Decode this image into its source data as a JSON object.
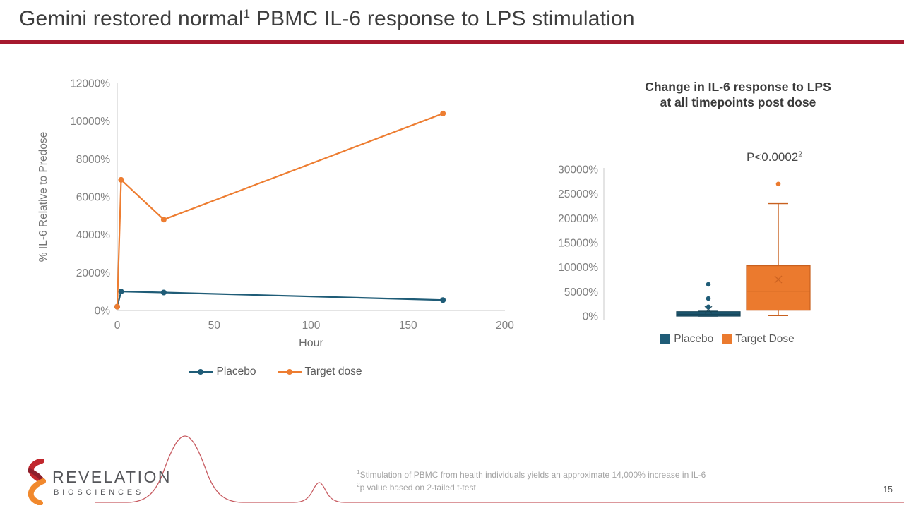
{
  "slide": {
    "title_pre": "Gemini restored normal",
    "title_sup": "1",
    "title_post": " PBMC IL-6 response to LPS stimulation",
    "accent_color": "#A6192E",
    "page_number": "15"
  },
  "logo": {
    "name": "REVELATION",
    "sub": "BIOSCIENCES",
    "colors": {
      "red": "#C1272D",
      "dark_red": "#8E1F2C",
      "orange": "#F1892D",
      "trace_red": "#C75A60"
    }
  },
  "footnotes": [
    {
      "sup": "1",
      "text": "Stimulation of PBMC from health individuals yields an approximate 14,000% increase in IL-6"
    },
    {
      "sup": "2",
      "text": "p value based on 2-tailed t-test"
    }
  ],
  "chart_data": [
    {
      "type": "line",
      "title": "",
      "xlabel": "Hour",
      "ylabel": "% IL-6 Relative to Predose",
      "x": [
        0,
        2,
        24,
        168
      ],
      "x_ticks": [
        0,
        50,
        100,
        150,
        200
      ],
      "y_ticks": [
        0,
        2000,
        4000,
        6000,
        8000,
        10000,
        12000
      ],
      "y_tick_suffix": "%",
      "xlim": [
        0,
        200
      ],
      "ylim": [
        0,
        12000
      ],
      "grid": false,
      "legend_position": "bottom",
      "series": [
        {
          "name": "Placebo",
          "color": "#1F5C77",
          "values": [
            200,
            1000,
            950,
            550
          ]
        },
        {
          "name": "Target dose",
          "color": "#ED7D31",
          "values": [
            200,
            6900,
            4800,
            10400
          ]
        }
      ]
    },
    {
      "type": "box",
      "title": "Change in IL-6 response to LPS at all timepoints post dose",
      "title_lines": [
        "Change in IL-6 response to LPS",
        "at all timepoints post dose"
      ],
      "annotation": "P<0.0002",
      "annotation_sup": "2",
      "y_ticks": [
        0,
        5000,
        10000,
        15000,
        20000,
        25000,
        30000
      ],
      "y_tick_suffix": "%",
      "ylim": [
        0,
        30000
      ],
      "grid": false,
      "legend_position": "bottom",
      "series": [
        {
          "name": "Placebo",
          "color": "#1F5C77",
          "border": "#164457",
          "whisker_low": 0,
          "q1": 0,
          "median": 400,
          "q3": 900,
          "whisker_high": 1000,
          "mean": 1300,
          "outliers": [
            1900,
            3600,
            6500
          ]
        },
        {
          "name": "Target Dose",
          "color": "#EB7A2E",
          "border": "#C8601F",
          "whisker_low": 100,
          "q1": 1200,
          "median": 5100,
          "q3": 10300,
          "whisker_high": 23000,
          "mean": 7500,
          "outliers": [
            27000
          ]
        }
      ]
    }
  ]
}
